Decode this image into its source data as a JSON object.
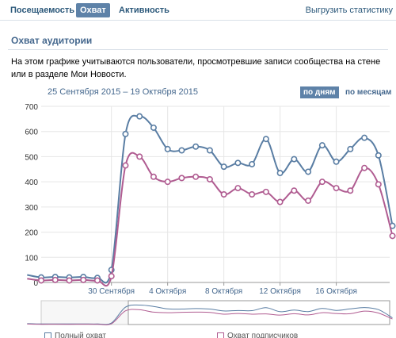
{
  "tabs": [
    {
      "label": "Посещаемость",
      "active": false
    },
    {
      "label": "Охват",
      "active": true
    },
    {
      "label": "Активность",
      "active": false
    }
  ],
  "export_label": "Выгрузить статистику",
  "section": {
    "title": "Охват аудитории",
    "description": "На этом графике учитываются пользователи, просмотревшие записи сообщества на стене или в разделе Мои Новости."
  },
  "date_range": "25 Сентября 2015 – 19 Октября 2015",
  "modes": [
    {
      "label": "по дням",
      "active": true
    },
    {
      "label": "по месяцам",
      "active": false
    }
  ],
  "colors": {
    "accent": "#5e82a8",
    "full_reach": "#597da3",
    "subscriber_reach": "#b05c91",
    "grid": "#e6e6e6"
  },
  "chart_data": {
    "type": "line",
    "x_day_start": 0,
    "x_day_end": 24.8,
    "ylim": [
      0,
      700
    ],
    "yticks": [
      0,
      100,
      200,
      300,
      400,
      500,
      600,
      700
    ],
    "grid": true,
    "xtick_labels": [
      {
        "day": 5,
        "label": "30 Сентября"
      },
      {
        "day": 9,
        "label": "4 Октября"
      },
      {
        "day": 13,
        "label": "8 Октября"
      },
      {
        "day": 17,
        "label": "12 Октября"
      },
      {
        "day": 21,
        "label": "16 Октября"
      }
    ],
    "series": [
      {
        "name": "Полный охват",
        "values": [
          30,
          20,
          22,
          20,
          22,
          18,
          50,
          590,
          660,
          615,
          530,
          525,
          540,
          525,
          460,
          475,
          470,
          570,
          435,
          490,
          440,
          545,
          480,
          530,
          575,
          505,
          225
        ]
      },
      {
        "name": "Охват подписчиков",
        "values": [
          15,
          8,
          10,
          8,
          10,
          8,
          25,
          465,
          500,
          420,
          400,
          415,
          420,
          410,
          350,
          375,
          350,
          360,
          320,
          365,
          325,
          400,
          375,
          365,
          455,
          390,
          185
        ]
      }
    ]
  },
  "legend": [
    {
      "label": "Полный охват"
    },
    {
      "label": "Охват подписчиков"
    }
  ]
}
